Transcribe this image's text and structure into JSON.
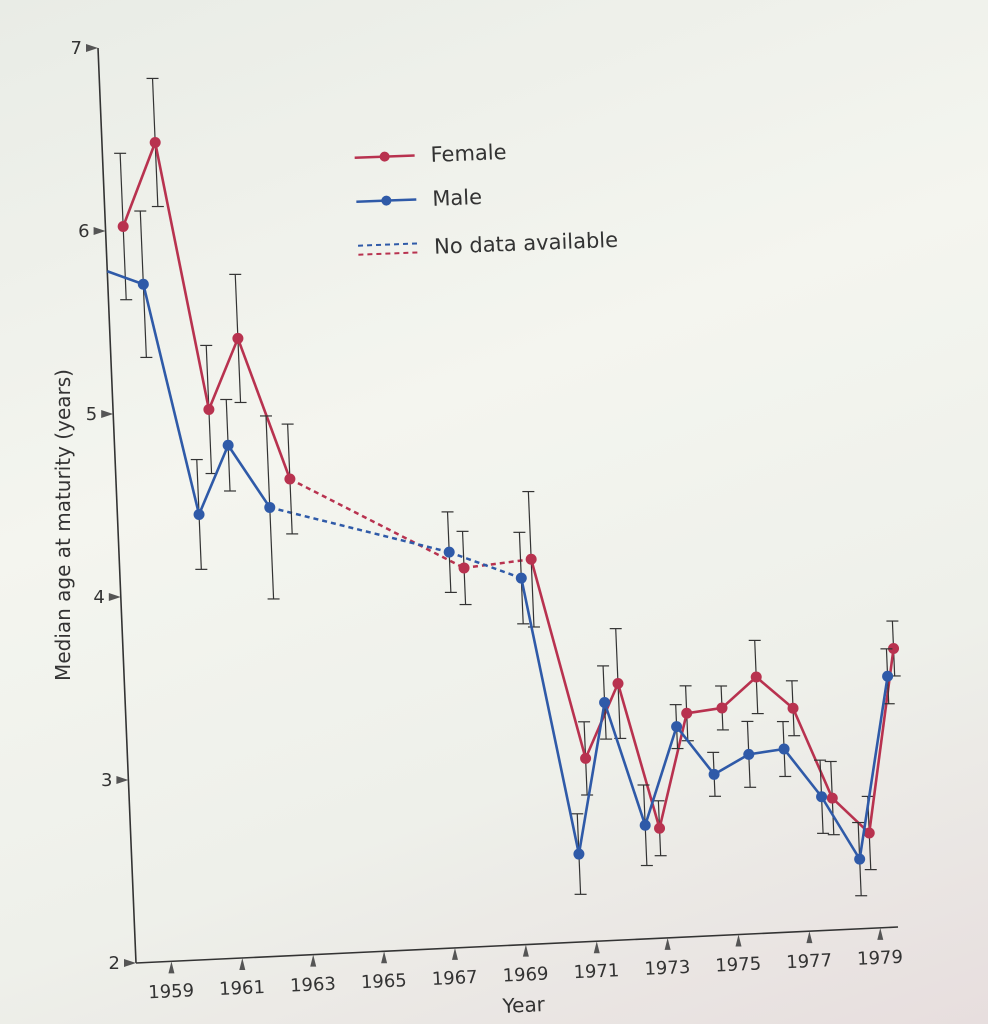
{
  "chart_data": {
    "type": "line",
    "title": "",
    "xlabel": "Year",
    "ylabel": "Median age at maturity (years)",
    "xlim": [
      1958,
      1979.5
    ],
    "ylim": [
      2,
      7
    ],
    "yticks": [
      2,
      3,
      4,
      5,
      6,
      7
    ],
    "xticks": [
      1959,
      1961,
      1963,
      1965,
      1967,
      1969,
      1971,
      1973,
      1975,
      1977,
      1979
    ],
    "legend": {
      "position": "top-center",
      "entries": [
        {
          "label": "Female",
          "style": "solid",
          "color": "#b8324f"
        },
        {
          "label": "Male",
          "style": "solid",
          "color": "#2f5aa8"
        },
        {
          "label": "No data available",
          "style": "dashed"
        }
      ]
    },
    "series": [
      {
        "name": "Female",
        "color": "#b8324f",
        "points": [
          {
            "x": 1958.5,
            "y": 6.02,
            "err": 0.4
          },
          {
            "x": 1959.5,
            "y": 6.47,
            "err": 0.35
          },
          {
            "x": 1960.7,
            "y": 5.0,
            "err": 0.35
          },
          {
            "x": 1961.6,
            "y": 5.38,
            "err": 0.35
          },
          {
            "x": 1962.9,
            "y": 4.6,
            "err": 0.3
          },
          {
            "x": 1967.7,
            "y": 4.07,
            "err": 0.2
          },
          {
            "x": 1969.6,
            "y": 4.1,
            "err": 0.37
          },
          {
            "x": 1970.9,
            "y": 3.0,
            "err": 0.2
          },
          {
            "x": 1971.9,
            "y": 3.4,
            "err": 0.3
          },
          {
            "x": 1972.9,
            "y": 2.6,
            "err": 0.15
          },
          {
            "x": 1973.8,
            "y": 3.22,
            "err": 0.15
          },
          {
            "x": 1974.8,
            "y": 3.24,
            "err": 0.12
          },
          {
            "x": 1975.8,
            "y": 3.4,
            "err": 0.2
          },
          {
            "x": 1976.8,
            "y": 3.22,
            "err": 0.15
          },
          {
            "x": 1977.8,
            "y": 2.72,
            "err": 0.2
          },
          {
            "x": 1978.8,
            "y": 2.52,
            "err": 0.2
          },
          {
            "x": 1979.7,
            "y": 3.52,
            "err": 0.15
          }
        ]
      },
      {
        "name": "Male",
        "color": "#2f5aa8",
        "points": [
          {
            "x": 1958.0,
            "y": 5.78,
            "err": null
          },
          {
            "x": 1959.0,
            "y": 5.7,
            "err": 0.4
          },
          {
            "x": 1960.3,
            "y": 4.43,
            "err": 0.3
          },
          {
            "x": 1961.2,
            "y": 4.8,
            "err": 0.25
          },
          {
            "x": 1962.3,
            "y": 4.45,
            "err": 0.5
          },
          {
            "x": 1967.3,
            "y": 4.16,
            "err": 0.22
          },
          {
            "x": 1969.3,
            "y": 4.0,
            "err": 0.25
          },
          {
            "x": 1970.6,
            "y": 2.48,
            "err": 0.22
          },
          {
            "x": 1971.5,
            "y": 3.3,
            "err": 0.2
          },
          {
            "x": 1972.5,
            "y": 2.62,
            "err": 0.22
          },
          {
            "x": 1973.5,
            "y": 3.15,
            "err": 0.12
          },
          {
            "x": 1974.5,
            "y": 2.88,
            "err": 0.12
          },
          {
            "x": 1975.5,
            "y": 2.98,
            "err": 0.18
          },
          {
            "x": 1976.5,
            "y": 3.0,
            "err": 0.15
          },
          {
            "x": 1977.5,
            "y": 2.73,
            "err": 0.2
          },
          {
            "x": 1978.5,
            "y": 2.38,
            "err": 0.2
          },
          {
            "x": 1979.5,
            "y": 3.37,
            "err": 0.15
          }
        ]
      }
    ],
    "no_data_gaps": [
      {
        "series": "Female",
        "from": {
          "x": 1962.9,
          "y": 4.6
        },
        "to": {
          "x": 1967.7,
          "y": 4.07
        }
      },
      {
        "series": "Male",
        "from": {
          "x": 1962.3,
          "y": 4.45
        },
        "to": {
          "x": 1967.3,
          "y": 4.16
        }
      },
      {
        "series": "Female",
        "from": {
          "x": 1967.7,
          "y": 4.07
        },
        "to": {
          "x": 1969.6,
          "y": 4.1
        }
      },
      {
        "series": "Male",
        "from": {
          "x": 1967.3,
          "y": 4.16
        },
        "to": {
          "x": 1969.3,
          "y": 4.0
        }
      }
    ]
  }
}
